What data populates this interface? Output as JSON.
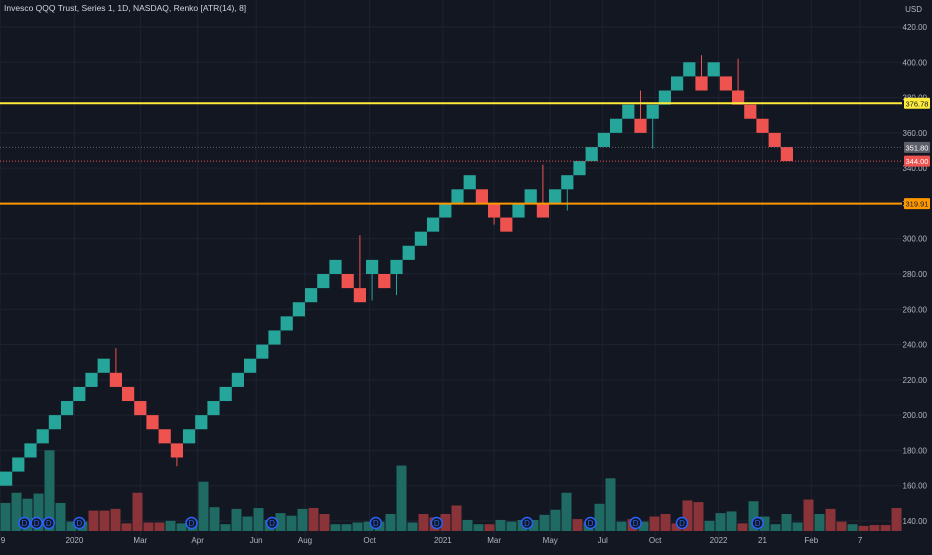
{
  "header": {
    "legend": "Invesco QQQ Trust, Series 1, 1D, NASDAQ, Renko [ATR(14), 8]",
    "currency": "USD"
  },
  "colors": {
    "background": "#131722",
    "grid": "#1f2230",
    "text": "#b2b5be",
    "up": "#26a69a",
    "down": "#ef5350",
    "vol_up": "#1f6b64",
    "vol_down": "#8a3338",
    "line_yellow": "#ffeb3b",
    "line_orange": "#ff9800",
    "event_badge": "#2962ff"
  },
  "chart_data": {
    "type": "renko",
    "symbol": "Invesco QQQ Trust",
    "exchange": "NASDAQ",
    "interval": "1D",
    "box_size_label": "ATR(14), 8",
    "y_axis": {
      "range": [
        125,
        430
      ],
      "tick_values": [
        140,
        160,
        180,
        200,
        220,
        240,
        260,
        280,
        300,
        320,
        340,
        360,
        380,
        400,
        420
      ]
    },
    "x_axis": {
      "tick_labels": [
        "9",
        "2020",
        "Mar",
        "Apr",
        "Jun",
        "Aug",
        "Oct",
        "2021",
        "Mar",
        "May",
        "Jul",
        "Oct",
        "2022",
        "21",
        "Feb",
        "7"
      ],
      "tick_bricks": [
        0,
        6.1,
        11.5,
        16.2,
        21,
        25,
        30.3,
        36.3,
        40.5,
        45.1,
        49.4,
        53.7,
        58.9,
        62.5,
        66.5,
        70.5
      ]
    },
    "bricks": [
      {
        "dir": "up",
        "open": 160,
        "close": 168
      },
      {
        "dir": "up",
        "open": 168,
        "close": 176
      },
      {
        "dir": "up",
        "open": 176,
        "close": 184
      },
      {
        "dir": "up",
        "open": 184,
        "close": 192
      },
      {
        "dir": "up",
        "open": 192,
        "close": 200
      },
      {
        "dir": "up",
        "open": 200,
        "close": 208
      },
      {
        "dir": "up",
        "open": 208,
        "close": 216
      },
      {
        "dir": "up",
        "open": 216,
        "close": 224
      },
      {
        "dir": "up",
        "open": 224,
        "close": 232
      },
      {
        "dir": "down",
        "open": 224,
        "close": 216
      },
      {
        "dir": "down",
        "open": 216,
        "close": 208
      },
      {
        "dir": "down",
        "open": 208,
        "close": 200
      },
      {
        "dir": "down",
        "open": 200,
        "close": 192
      },
      {
        "dir": "down",
        "open": 192,
        "close": 184
      },
      {
        "dir": "down",
        "open": 184,
        "close": 176
      },
      {
        "dir": "up",
        "open": 184,
        "close": 192
      },
      {
        "dir": "up",
        "open": 192,
        "close": 200
      },
      {
        "dir": "up",
        "open": 200,
        "close": 208
      },
      {
        "dir": "up",
        "open": 208,
        "close": 216
      },
      {
        "dir": "up",
        "open": 216,
        "close": 224
      },
      {
        "dir": "up",
        "open": 224,
        "close": 232
      },
      {
        "dir": "up",
        "open": 232,
        "close": 240
      },
      {
        "dir": "up",
        "open": 240,
        "close": 248
      },
      {
        "dir": "up",
        "open": 248,
        "close": 256
      },
      {
        "dir": "up",
        "open": 256,
        "close": 264
      },
      {
        "dir": "up",
        "open": 264,
        "close": 272
      },
      {
        "dir": "up",
        "open": 272,
        "close": 280
      },
      {
        "dir": "up",
        "open": 280,
        "close": 288
      },
      {
        "dir": "down",
        "open": 280,
        "close": 272
      },
      {
        "dir": "down",
        "open": 272,
        "close": 264
      },
      {
        "dir": "up",
        "open": 280,
        "close": 288
      },
      {
        "dir": "down",
        "open": 280,
        "close": 272
      },
      {
        "dir": "up",
        "open": 280,
        "close": 288
      },
      {
        "dir": "up",
        "open": 288,
        "close": 296
      },
      {
        "dir": "up",
        "open": 296,
        "close": 304
      },
      {
        "dir": "up",
        "open": 304,
        "close": 312
      },
      {
        "dir": "up",
        "open": 312,
        "close": 320
      },
      {
        "dir": "up",
        "open": 320,
        "close": 328
      },
      {
        "dir": "up",
        "open": 328,
        "close": 336
      },
      {
        "dir": "down",
        "open": 328,
        "close": 320
      },
      {
        "dir": "down",
        "open": 320,
        "close": 312
      },
      {
        "dir": "down",
        "open": 312,
        "close": 304
      },
      {
        "dir": "up",
        "open": 312,
        "close": 320
      },
      {
        "dir": "up",
        "open": 320,
        "close": 328
      },
      {
        "dir": "down",
        "open": 320,
        "close": 312
      },
      {
        "dir": "up",
        "open": 320,
        "close": 328
      },
      {
        "dir": "up",
        "open": 328,
        "close": 336
      },
      {
        "dir": "up",
        "open": 336,
        "close": 344
      },
      {
        "dir": "up",
        "open": 344,
        "close": 352
      },
      {
        "dir": "up",
        "open": 352,
        "close": 360
      },
      {
        "dir": "up",
        "open": 360,
        "close": 368
      },
      {
        "dir": "up",
        "open": 368,
        "close": 376
      },
      {
        "dir": "down",
        "open": 368,
        "close": 360
      },
      {
        "dir": "up",
        "open": 368,
        "close": 376
      },
      {
        "dir": "up",
        "open": 376,
        "close": 384
      },
      {
        "dir": "up",
        "open": 384,
        "close": 392
      },
      {
        "dir": "up",
        "open": 392,
        "close": 400
      },
      {
        "dir": "down",
        "open": 392,
        "close": 384
      },
      {
        "dir": "up",
        "open": 392,
        "close": 400
      },
      {
        "dir": "down",
        "open": 392,
        "close": 384
      },
      {
        "dir": "down",
        "open": 384,
        "close": 376
      },
      {
        "dir": "down",
        "open": 376,
        "close": 368
      },
      {
        "dir": "down",
        "open": 368,
        "close": 360
      },
      {
        "dir": "down",
        "open": 360,
        "close": 352
      },
      {
        "dir": "down",
        "open": 352,
        "close": 344
      }
    ],
    "volume_relative": [
      0.33,
      0.45,
      0.38,
      0.44,
      0.95,
      0.33,
      0.11,
      0.11,
      0.24,
      0.24,
      0.26,
      0.09,
      0.45,
      0.1,
      0.1,
      0.12,
      0.09,
      0.13,
      0.58,
      0.28,
      0.08,
      0.26,
      0.17,
      0.27,
      0.13,
      0.21,
      0.18,
      0.26,
      0.27,
      0.2,
      0.08,
      0.08,
      0.1,
      0.11,
      0.11,
      0.2,
      0.77,
      0.1,
      0.2,
      0.16,
      0.2,
      0.3,
      0.13,
      0.08,
      0.08,
      0.13,
      0.11,
      0.13,
      0.13,
      0.19,
      0.25,
      0.45,
      0.14,
      0.1,
      0.32,
      0.62,
      0.11,
      0.14,
      0.11,
      0.17,
      0.2,
      0.09,
      0.36,
      0.34,
      0.12,
      0.21,
      0.23,
      0.09,
      0.35,
      0.17,
      0.08,
      0.2,
      0.1,
      0.37,
      0.2,
      0.26,
      0.11,
      0.08,
      0.06,
      0.07,
      0.07,
      0.27
    ],
    "volume_up_flags": [
      true,
      true,
      true,
      true,
      true,
      true,
      true,
      true,
      false,
      false,
      false,
      false,
      false,
      false,
      false,
      true,
      true,
      true,
      true,
      true,
      true,
      true,
      true,
      true,
      true,
      true,
      true,
      true,
      false,
      false,
      true,
      true,
      true,
      true,
      true,
      true,
      true,
      true,
      false,
      false,
      false,
      false,
      true,
      true,
      false,
      true,
      true,
      true,
      true,
      true,
      true,
      true,
      false,
      true,
      true,
      true,
      true,
      false,
      true,
      false,
      false,
      false,
      false,
      false,
      true,
      true,
      true,
      false,
      true,
      true,
      true,
      true,
      true,
      false,
      true,
      false,
      false,
      true,
      false,
      false,
      false,
      false
    ],
    "event_badge_label": "D",
    "event_badge_positions": [
      1.5,
      2.5,
      3.5,
      6,
      15.2,
      21.8,
      30.3,
      35.3,
      42.7,
      47.9,
      51.6,
      55.4,
      61.6
    ],
    "wicks": [
      {
        "brick": 9,
        "high": 238
      },
      {
        "brick": 14,
        "low": 171
      },
      {
        "brick": 15,
        "high": 190
      },
      {
        "brick": 29,
        "high": 302
      },
      {
        "brick": 30,
        "low": 265
      },
      {
        "brick": 32,
        "low": 268
      },
      {
        "brick": 40,
        "low": 308
      },
      {
        "brick": 44,
        "high": 342
      },
      {
        "brick": 46,
        "low": 316
      },
      {
        "brick": 52,
        "high": 384
      },
      {
        "brick": 53,
        "low": 351
      },
      {
        "brick": 57,
        "high": 404
      },
      {
        "brick": 60,
        "high": 402
      }
    ],
    "horizontal_lines": [
      {
        "value": 376.78,
        "label": "376.78",
        "color": "#ffeb3b",
        "style": "solid"
      },
      {
        "value": 319.91,
        "label": "319.91",
        "color": "#ff9800",
        "style": "solid"
      }
    ],
    "price_labels": [
      {
        "value": 351.8,
        "label": "351.80",
        "bg": "#5d606b"
      },
      {
        "value": 344.0,
        "label": "344.00",
        "bg": "#ef5350"
      }
    ]
  }
}
